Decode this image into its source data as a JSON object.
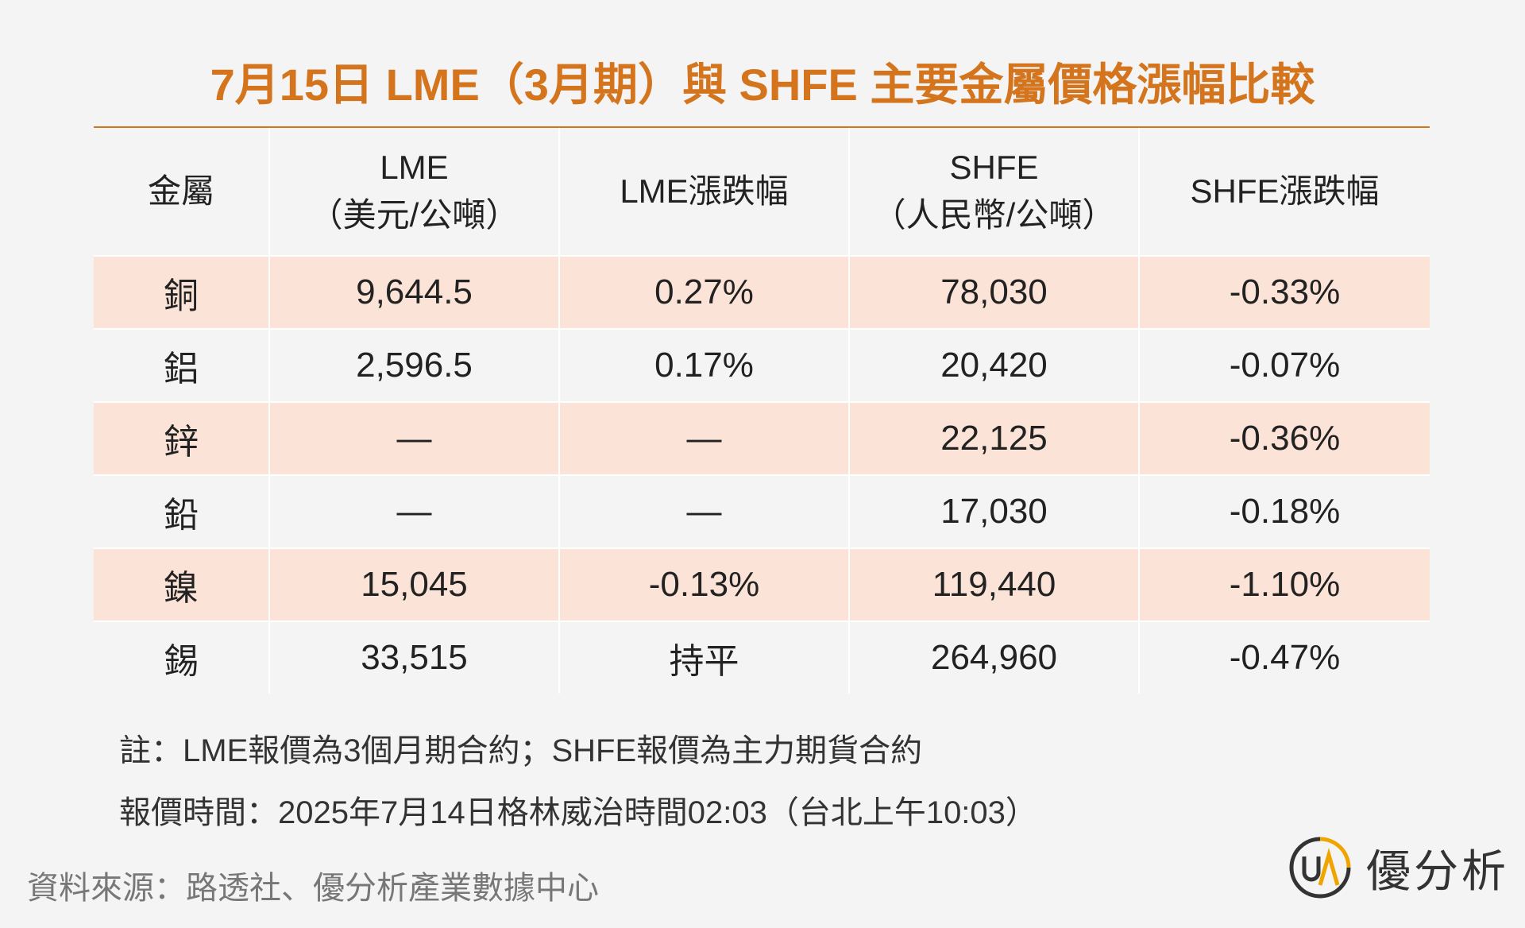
{
  "title": "7月15日 LME（3月期）與 SHFE 主要金屬價格漲幅比較",
  "table": {
    "header": [
      [
        "金屬"
      ],
      [
        "LME",
        "（美元/公噸）"
      ],
      [
        "LME漲跌幅"
      ],
      [
        "SHFE",
        "（人民幣/公噸）"
      ],
      [
        "SHFE漲跌幅"
      ]
    ],
    "rows": [
      [
        "銅",
        "9,644.5",
        "0.27%",
        "78,030",
        "-0.33%"
      ],
      [
        "鋁",
        "2,596.5",
        "0.17%",
        "20,420",
        "-0.07%"
      ],
      [
        "鋅",
        "—",
        "—",
        "22,125",
        "-0.36%"
      ],
      [
        "鉛",
        "—",
        "—",
        "17,030",
        "-0.18%"
      ],
      [
        "鎳",
        "15,045",
        "-0.13%",
        "119,440",
        "-1.10%"
      ],
      [
        "錫",
        "33,515",
        "持平",
        "264,960",
        "-0.47%"
      ]
    ]
  },
  "notes": [
    "註：LME報價為3個月期合約；SHFE報價為主力期貨合約",
    "報價時間：2025年7月14日格林威治時間02:03（台北上午10:03）"
  ],
  "source": "資料來源：路透社、優分析產業數據中心",
  "logo": "優分析"
}
